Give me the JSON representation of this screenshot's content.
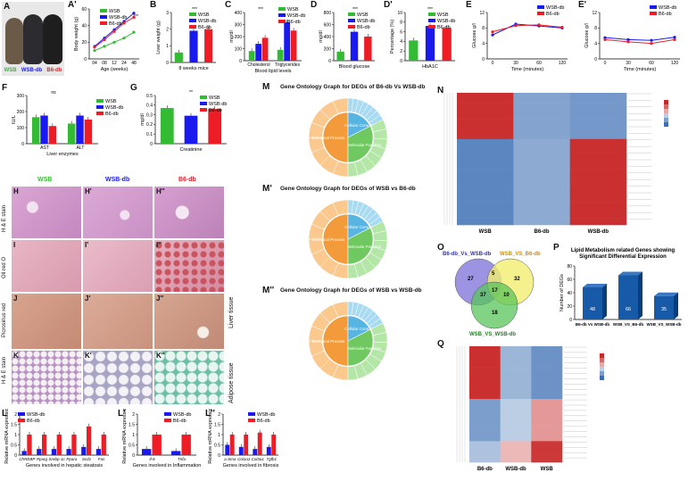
{
  "panel_letters": {
    "A": "A",
    "A1": "A'",
    "B": "B",
    "C": "C",
    "D": "D",
    "D1": "D'",
    "E": "E",
    "E1": "E'",
    "F": "F",
    "G": "G",
    "M": "M",
    "M1": "M'",
    "M2": "M''",
    "N": "N",
    "O": "O",
    "P": "P",
    "Q": "Q",
    "H": "H",
    "H1": "H'",
    "H2": "H''",
    "I": "I",
    "I1": "I'",
    "I2": "I''",
    "J": "J",
    "J1": "J'",
    "J2": "J''",
    "K": "K",
    "K1": "K'",
    "K2": "K''",
    "L": "L",
    "L1": "L'",
    "L2": "L''"
  },
  "photo_labels": {
    "wsb": "WSB",
    "wsbdb": "WSB-db",
    "b6db": "B6-db"
  },
  "groups": {
    "wsb": "WSB",
    "wsbdb": "WSB-db",
    "b6db": "B6-db"
  },
  "colors": {
    "wsb": "#33bb33",
    "wsbdb": "#1a1aee",
    "b6db": "#ee1c24"
  },
  "sig": {
    "s3": "***",
    "s2": "**",
    "s1": "*",
    "ns": "ns"
  },
  "chart_data": [
    {
      "id": "A1",
      "type": "line",
      "xlabel": "Age (weeks)",
      "ylabel": "Body weight (g)",
      "x": [
        4,
        8,
        12,
        24,
        48
      ],
      "xticks": [
        "04",
        "08",
        "12",
        "24",
        "48"
      ],
      "ylim": [
        0,
        60
      ],
      "yticks": [
        0,
        20,
        40,
        60
      ],
      "series": [
        {
          "name": "WSB",
          "values": [
            10,
            15,
            20,
            25,
            32
          ]
        },
        {
          "name": "WSB-db",
          "values": [
            15,
            25,
            35,
            45,
            55
          ]
        },
        {
          "name": "B6-db",
          "values": [
            14,
            23,
            33,
            43,
            50
          ]
        }
      ]
    },
    {
      "id": "B",
      "type": "bar",
      "xlabel": "8 weeks mice",
      "ylabel": "Liver weight (g)",
      "categories": [
        "WSB",
        "WSB-db",
        "B6-db"
      ],
      "values": [
        0.6,
        1.9,
        2.0
      ],
      "ylim": [
        0,
        3
      ],
      "yticks": [
        0,
        1,
        2,
        3
      ]
    },
    {
      "id": "C",
      "type": "bar",
      "xlabel": "Blood lipid levels",
      "ylabel": "mg/dl",
      "categories": [
        "Cholesterol",
        "Triglycerides"
      ],
      "ylim": [
        0,
        400
      ],
      "yticks": [
        0,
        100,
        200,
        300,
        400
      ],
      "series": [
        {
          "name": "WSB",
          "values": [
            80,
            90
          ]
        },
        {
          "name": "WSB-db",
          "values": [
            140,
            320
          ]
        },
        {
          "name": "B6-db",
          "values": [
            190,
            250
          ]
        }
      ]
    },
    {
      "id": "D",
      "type": "bar",
      "xlabel": "Blood glucose",
      "ylabel": "mg/dl",
      "categories": [
        "WSB",
        "WSB-db",
        "B6-db"
      ],
      "values": [
        150,
        480,
        400
      ],
      "ylim": [
        0,
        800
      ],
      "yticks": [
        0,
        200,
        400,
        600,
        800
      ]
    },
    {
      "id": "D1",
      "type": "bar",
      "xlabel": "HbA1C",
      "ylabel": "Percentage (%)",
      "categories": [
        "WSB",
        "WSB-db",
        "B6-db"
      ],
      "values": [
        4.2,
        7.2,
        6.8
      ],
      "ylim": [
        0,
        10
      ],
      "yticks": [
        0,
        2,
        4,
        6,
        8,
        10
      ]
    },
    {
      "id": "E",
      "type": "line",
      "xlabel": "Time (minutes)",
      "ylabel": "Glucose g/l",
      "x": [
        0,
        30,
        60,
        120
      ],
      "xticks": [
        "0",
        "30",
        "60",
        "120"
      ],
      "ylim": [
        0,
        12
      ],
      "yticks": [
        0,
        4,
        8,
        12
      ],
      "series": [
        {
          "name": "WSB-db",
          "values": [
            6.2,
            9,
            8.5,
            8
          ]
        },
        {
          "name": "B6-db",
          "values": [
            7,
            8.6,
            8.8,
            8.2
          ]
        }
      ]
    },
    {
      "id": "E1",
      "type": "line",
      "xlabel": "Time (minutes)",
      "ylabel": "Glucose g/l",
      "x": [
        0,
        30,
        60,
        120
      ],
      "xticks": [
        "0",
        "30",
        "60",
        "120"
      ],
      "ylim": [
        0,
        12
      ],
      "yticks": [
        0,
        4,
        8,
        12
      ],
      "series": [
        {
          "name": "WSB-db",
          "values": [
            5.5,
            5,
            4.8,
            5.6
          ]
        },
        {
          "name": "B6-db",
          "values": [
            5,
            4.4,
            4,
            5
          ]
        }
      ]
    },
    {
      "id": "F",
      "type": "bar",
      "xlabel": "Liver enzymes",
      "ylabel": "IU/L",
      "categories": [
        "AST",
        "ALT"
      ],
      "ylim": [
        0,
        300
      ],
      "yticks": [
        0,
        100,
        200,
        300
      ],
      "series": [
        {
          "name": "WSB",
          "values": [
            165,
            125
          ]
        },
        {
          "name": "WSB-db",
          "values": [
            175,
            175
          ]
        },
        {
          "name": "B6-db",
          "values": [
            110,
            150
          ]
        }
      ]
    },
    {
      "id": "G",
      "type": "bar",
      "xlabel": "Creatinine",
      "ylabel": "mg/dl",
      "categories": [
        "WSB",
        "WSB-db",
        "B6-db"
      ],
      "values": [
        0.37,
        0.29,
        0.36
      ],
      "ylim": [
        0,
        0.5
      ],
      "yticks": [
        0.0,
        0.1,
        0.2,
        0.3,
        0.4,
        0.5
      ]
    },
    {
      "id": "P",
      "type": "bar",
      "title": "Lipid Metabolism related Genes showing Significant Differential Expression",
      "ylabel": "Number of DEGs",
      "categories": [
        "B6-db Vs WSB-db",
        "WSB_VS_B6-db",
        "WSB_VS_WSB-db"
      ],
      "values": [
        48,
        66,
        35
      ],
      "ylim": [
        0,
        80
      ],
      "yticks": [
        0,
        20,
        40,
        60,
        80
      ]
    },
    {
      "id": "L",
      "type": "bar",
      "xlabel": "Genes involved in hepatic steatosis",
      "ylabel": "Relative mRNA expression",
      "categories": [
        "ChREBP",
        "Pparg",
        "Srebp-1c",
        "Ppara",
        "Scd1",
        "Fas"
      ],
      "ylim": [
        0,
        2
      ],
      "yticks": [
        0,
        0.5,
        1,
        1.5,
        2
      ],
      "series": [
        {
          "name": "WSB-db",
          "values": [
            0.2,
            0.3,
            0.3,
            0.3,
            0.4,
            0.3
          ]
        },
        {
          "name": "B6-db",
          "values": [
            1,
            1,
            1,
            1,
            1.4,
            1
          ]
        }
      ]
    },
    {
      "id": "L1",
      "type": "bar",
      "xlabel": "Genes involved in Inflammation",
      "ylabel": "Relative mRNA expression",
      "categories": [
        "Il-6",
        "Tnfa"
      ],
      "ylim": [
        0,
        2
      ],
      "yticks": [
        0,
        0.5,
        1,
        1.5,
        2
      ],
      "series": [
        {
          "name": "WSB-db",
          "values": [
            0.3,
            0.2
          ]
        },
        {
          "name": "B6-db",
          "values": [
            1,
            1
          ]
        }
      ]
    },
    {
      "id": "L2",
      "type": "bar",
      "xlabel": "Genes involved in fibrosis",
      "ylabel": "Relative mRNA expression",
      "categories": [
        "a-Sma",
        "Col1a1",
        "Col3a1",
        "Tgfb1"
      ],
      "ylim": [
        0,
        2
      ],
      "yticks": [
        0,
        0.5,
        1,
        1.5,
        2
      ],
      "series": [
        {
          "name": "WSB-db",
          "values": [
            0.5,
            0.4,
            0.3,
            0.4
          ]
        },
        {
          "name": "B6-db",
          "values": [
            1,
            1,
            1.1,
            1
          ]
        }
      ]
    }
  ],
  "histology": {
    "col_headers": [
      "WSB",
      "WSB-db",
      "B6-db"
    ],
    "rows": [
      "H & E stain",
      "Oil red O",
      "Picrosirius red",
      "H & E stain"
    ],
    "tissue_labels": [
      "Liver tissue",
      "Adipose tissue"
    ]
  },
  "go": {
    "M": {
      "title": "Gene Ontology Graph for DEGs of B6-db Vs WSB-db",
      "cc": "Cellular Component",
      "mf": "Molecular Function",
      "bp": "Biological Process"
    },
    "M1": {
      "title": "Gene Ontology Graph for DEGs of WSB vs B6-db",
      "cc": "Cellular Component",
      "mf": "Molecular Function",
      "bp": "Biological Process"
    },
    "M2": {
      "title": "Gene Ontology Graph for DEGs of WSB vs WSB-db",
      "cc": "Cellular Component",
      "mf": "Molecular Function",
      "bp": "Biological Process"
    }
  },
  "heatmap": {
    "N_cols": [
      "WSB",
      "B6-db",
      "WSB-db"
    ],
    "Q_cols": [
      "B6-db",
      "WSB-db",
      "WSB"
    ]
  },
  "venn": {
    "sets": [
      "B6-db_Vs_WSB-db",
      "WSB_VS_B6-db",
      "WSB_VS_WSB-db"
    ],
    "counts": [
      "27",
      "5",
      "32",
      "37",
      "17",
      "10",
      "18"
    ]
  }
}
